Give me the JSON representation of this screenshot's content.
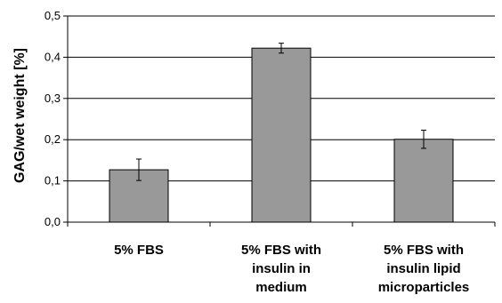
{
  "chart_data": {
    "type": "bar",
    "categories": [
      [
        "5% FBS"
      ],
      [
        "5% FBS with",
        "insulin in",
        "medium"
      ],
      [
        "5% FBS with",
        "insulin lipid",
        "microparticles"
      ]
    ],
    "values": [
      0.127,
      0.422,
      0.201
    ],
    "error": [
      0.026,
      0.012,
      0.022
    ],
    "ylabel": "GAG/wet weight [%]",
    "xlabel": "",
    "ylim": [
      0,
      0.5
    ],
    "yticks": [
      "0,0",
      "0,1",
      "0,2",
      "0,3",
      "0,4",
      "0,5"
    ],
    "grid": true,
    "bar_color": "#999999",
    "bar_edge_color": "#000000",
    "legend": "none"
  }
}
